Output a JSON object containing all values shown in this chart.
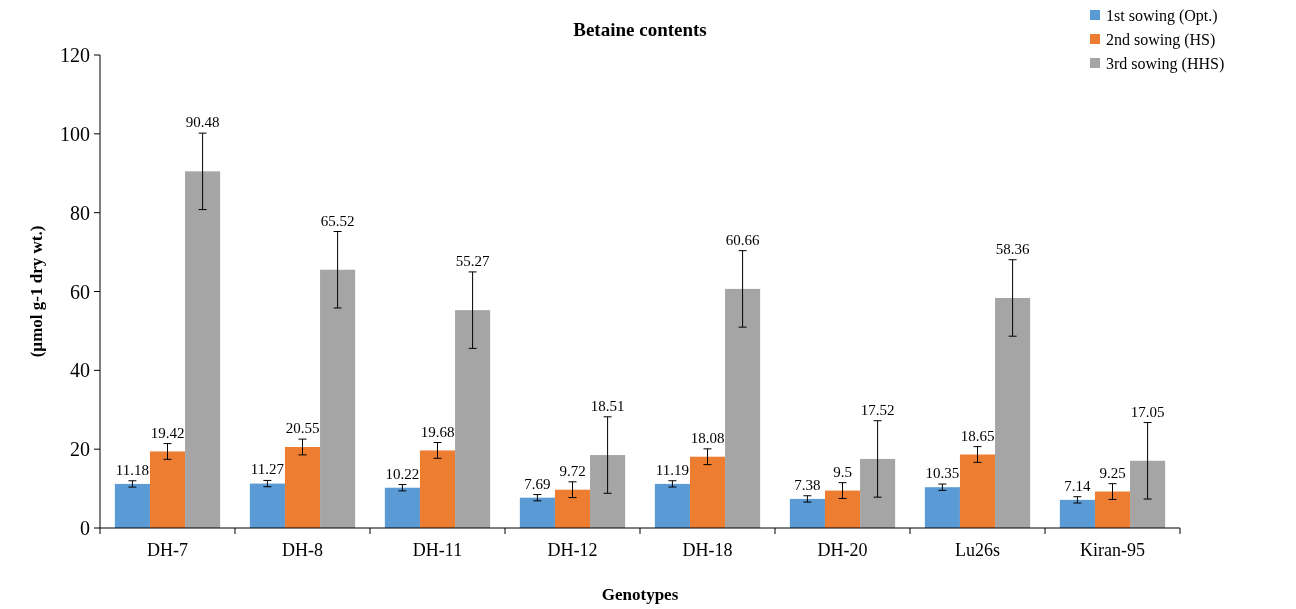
{
  "chart_data": {
    "type": "bar",
    "title": "Betaine contents",
    "xlabel": "Genotypes",
    "ylabel": "(µmol g-1 dry wt.)",
    "categories": [
      "DH-7",
      "DH-8",
      "DH-11",
      "DH-12",
      "DH-18",
      "DH-20",
      "Lu26s",
      "Kiran-95"
    ],
    "series": [
      {
        "name": "1st sowing (Opt.)",
        "color": "#5b9bd5",
        "values": [
          11.18,
          11.27,
          10.22,
          7.69,
          11.19,
          7.38,
          10.35,
          7.14
        ],
        "errors": [
          0.8,
          0.8,
          0.8,
          0.8,
          0.8,
          0.8,
          0.8,
          0.8
        ]
      },
      {
        "name": "2nd sowing (HS)",
        "color": "#ed7d31",
        "values": [
          19.42,
          20.55,
          19.68,
          9.72,
          18.08,
          9.5,
          18.65,
          9.25
        ],
        "errors": [
          2,
          2,
          2,
          2,
          2,
          2,
          2,
          2
        ]
      },
      {
        "name": "3rd sowing (HHS)",
        "color": "#a5a5a5",
        "values": [
          90.48,
          65.52,
          55.27,
          18.51,
          60.66,
          17.52,
          58.36,
          17.05
        ],
        "errors": [
          9.7,
          9.7,
          9.7,
          9.7,
          9.7,
          9.7,
          9.7,
          9.7
        ]
      }
    ],
    "ylim": [
      0,
      120
    ],
    "yticks": [
      0,
      20,
      40,
      60,
      80,
      100,
      120
    ],
    "data_labels": true,
    "legend": "top right",
    "grid": false
  }
}
